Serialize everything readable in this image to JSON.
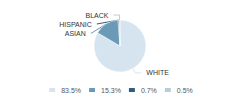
{
  "chart_data": {
    "type": "pie",
    "categories": [
      "WHITE",
      "ASIAN",
      "HISPANIC",
      "BLACK"
    ],
    "values": [
      83.5,
      15.3,
      0.7,
      0.5
    ],
    "value_labels": [
      "83.5%",
      "15.3%",
      "0.7%",
      "0.5%"
    ],
    "colors": [
      "#d6e4ef",
      "#6a9ab8",
      "#2e5f7a",
      "#b8cdd8"
    ],
    "legend": "bottom"
  }
}
